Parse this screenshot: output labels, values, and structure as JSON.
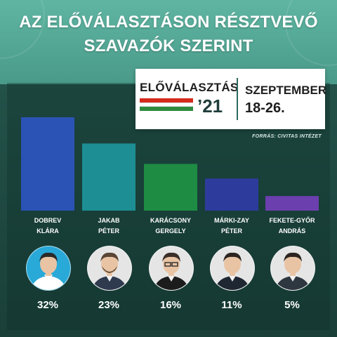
{
  "title_line1": "AZ ELŐVÁLASZTÁSON RÉSZTVEVŐ",
  "title_line2": "SZAVAZÓK SZERINT",
  "badge": {
    "name": "ELŐVÁLASZTÁS",
    "year": "’21",
    "month": "SZEPTEMBER",
    "days": "18-26."
  },
  "source": "FORRÁS: CIVITAS INTÉZET",
  "flag_colors": [
    "#d52b1e",
    "#ffffff",
    "#2e8b3e"
  ],
  "candidates": [
    {
      "line1": "DOBREV",
      "line2": "KLÁRA",
      "pct": "32%",
      "color": "#2b53b5",
      "icon": "woman-short-hair-portrait"
    },
    {
      "line1": "JAKAB",
      "line2": "PÉTER",
      "pct": "23%",
      "color": "#1d8f94",
      "icon": "man-beard-portrait"
    },
    {
      "line1": "KARÁCSONY",
      "line2": "GERGELY",
      "pct": "16%",
      "color": "#1e8d43",
      "icon": "man-glasses-portrait"
    },
    {
      "line1": "MÁRKI-ZAY",
      "line2": "PÉTER",
      "pct": "11%",
      "color": "#2d3c9c",
      "icon": "man-suit-portrait"
    },
    {
      "line1": "FEKETE-GYŐR",
      "line2": "ANDRÁS",
      "pct": "5%",
      "color": "#6c3fae",
      "icon": "man-dark-hair-portrait"
    }
  ],
  "chart_data": {
    "type": "bar",
    "title": "AZ ELŐVÁLASZTÁSON RÉSZTVEVŐ SZAVAZÓK SZERINT",
    "categories": [
      "DOBREV KLÁRA",
      "JAKAB PÉTER",
      "KARÁCSONY GERGELY",
      "MÁRKI-ZAY PÉTER",
      "FEKETE-GYŐR ANDRÁS"
    ],
    "values": [
      32,
      23,
      16,
      11,
      5
    ],
    "unit": "%",
    "ylim": [
      0,
      32
    ],
    "colors": [
      "#2b53b5",
      "#1d8f94",
      "#1e8d43",
      "#2d3c9c",
      "#6c3fae"
    ],
    "grid": false,
    "legend": "none"
  }
}
